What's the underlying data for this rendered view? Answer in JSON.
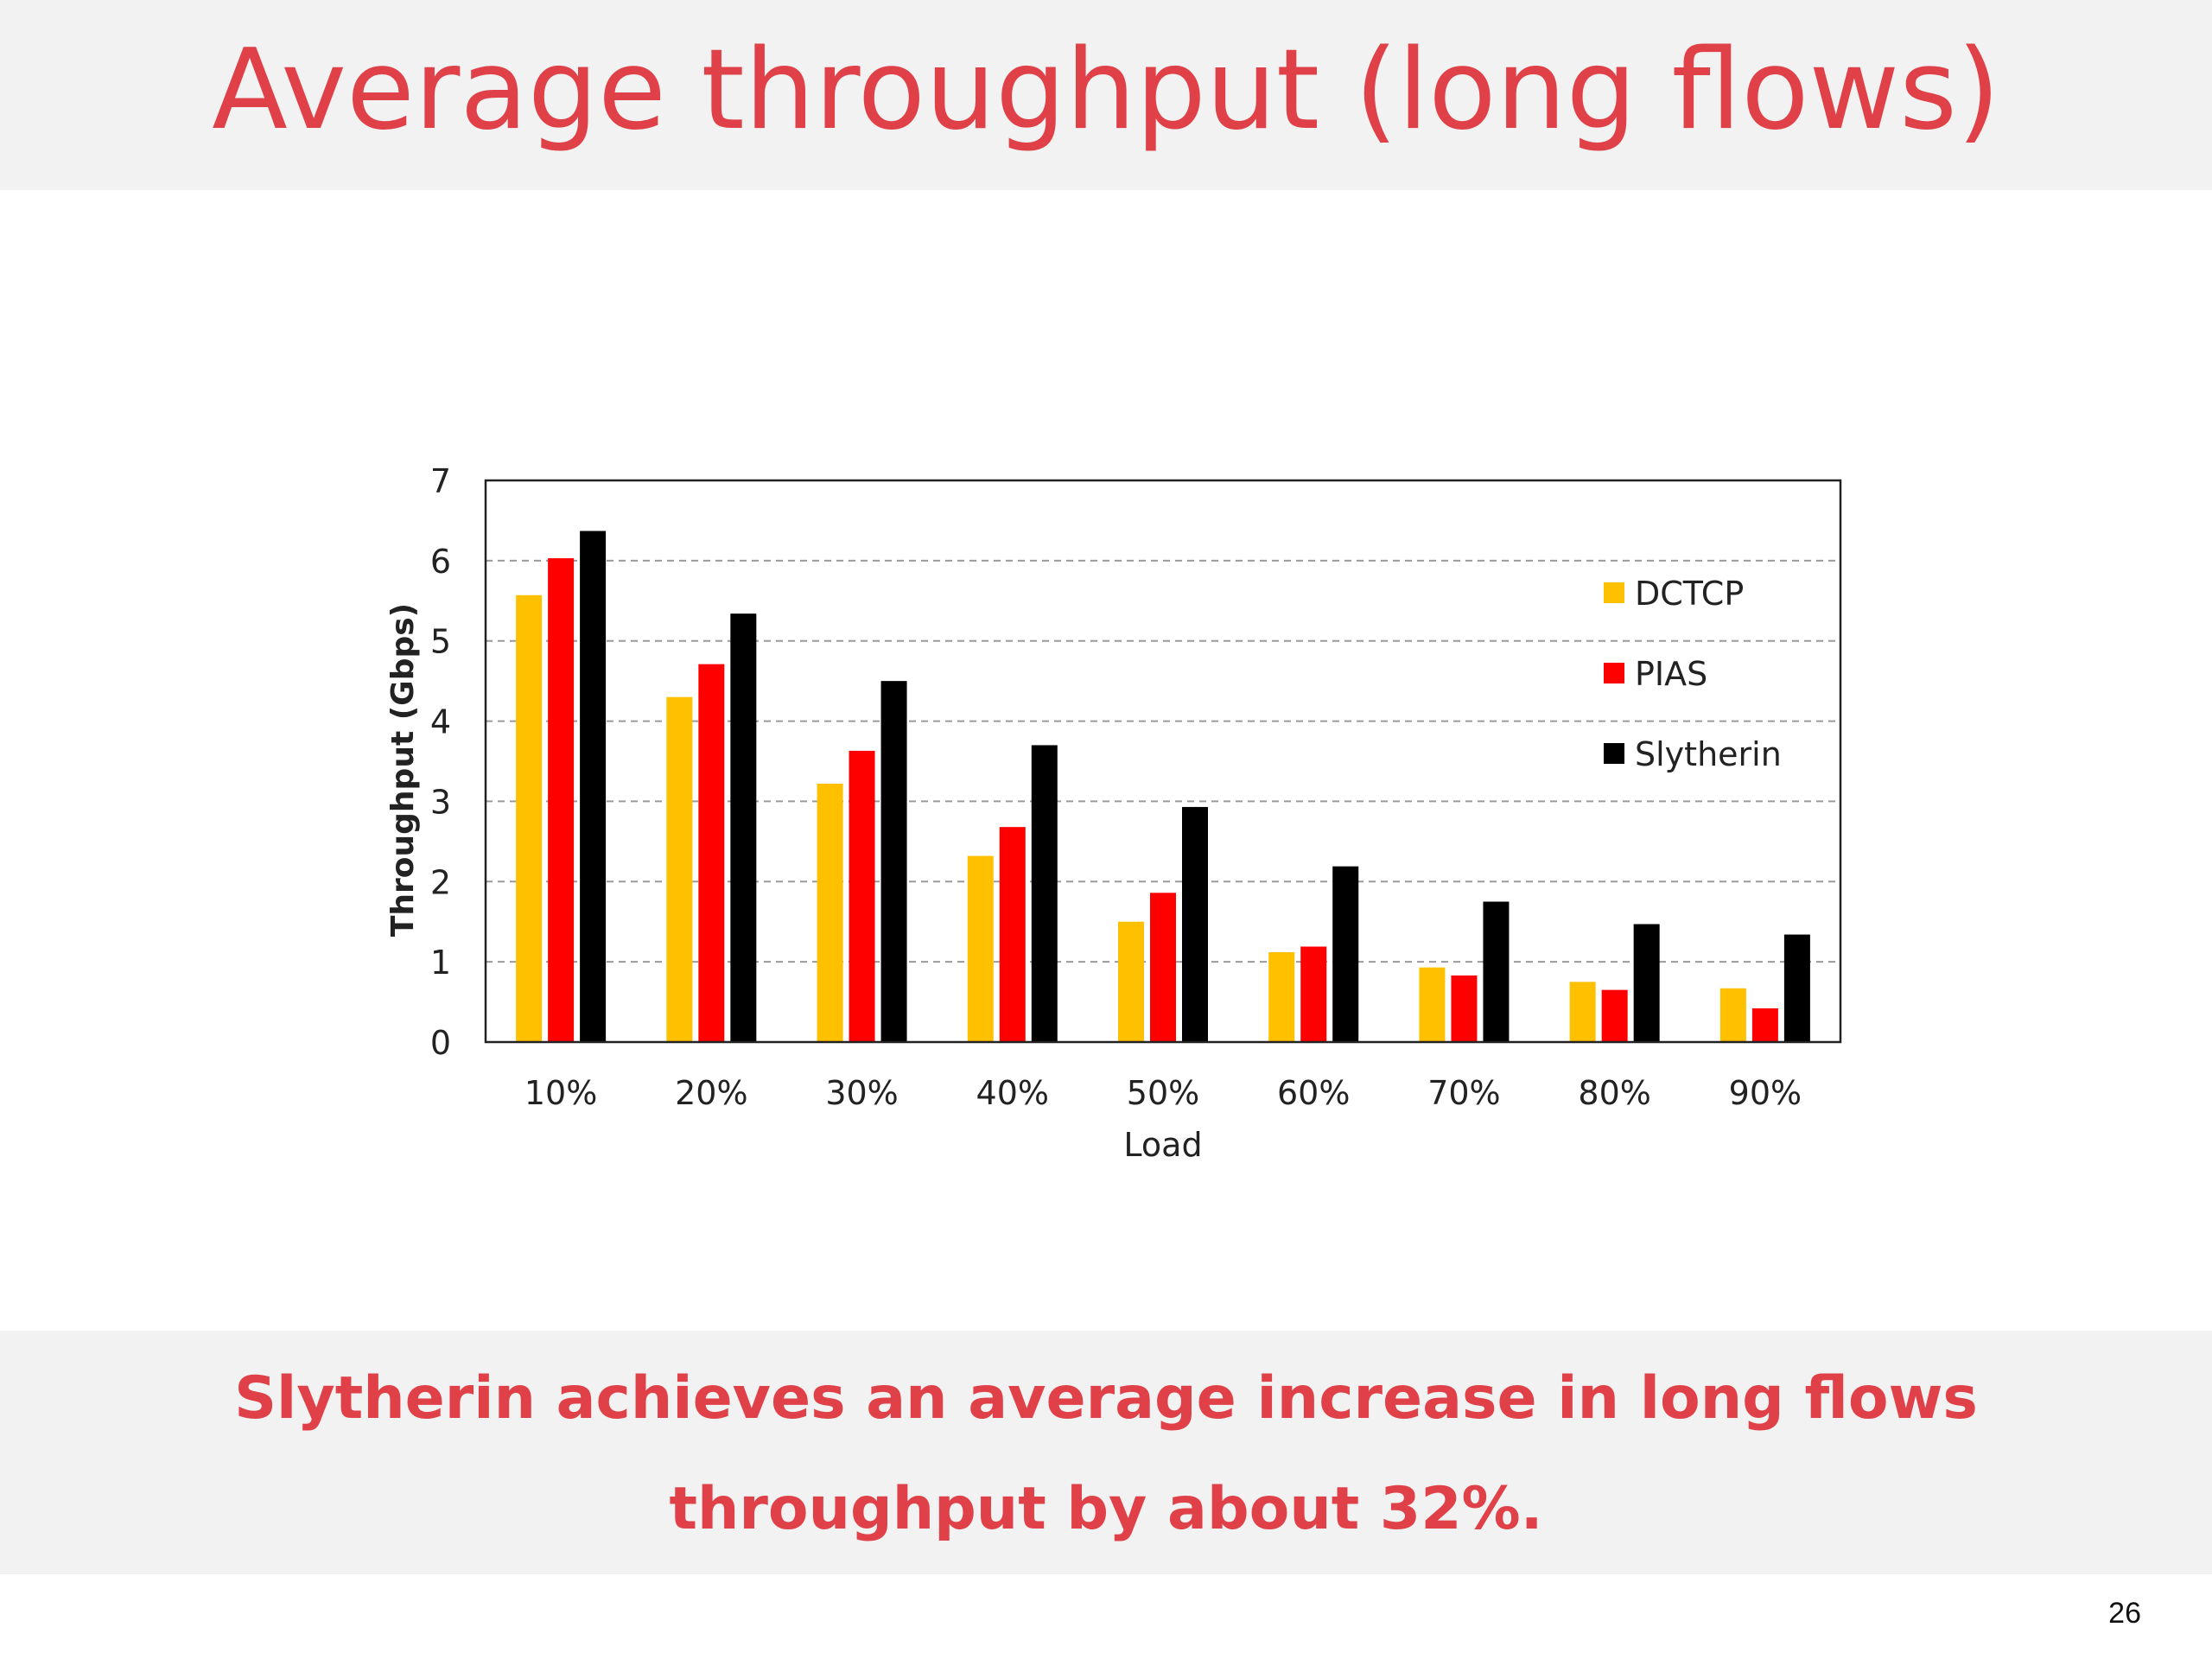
{
  "slide": {
    "title": "Average throughput (long flows)",
    "conclusion_line1": "Slytherin achieves an average increase in long flows",
    "conclusion_line2": "throughput by about 32%.",
    "page_number": "26"
  },
  "chart_data": {
    "type": "bar",
    "xlabel": "Load",
    "ylabel": "Throughput (Gbps)",
    "ylim": [
      0,
      7
    ],
    "yticks": [
      0,
      1,
      2,
      3,
      4,
      5,
      6,
      7
    ],
    "grid": "horizontal-dashed",
    "legend_position": "top-right",
    "categories": [
      "10%",
      "20%",
      "30%",
      "40%",
      "50%",
      "60%",
      "70%",
      "80%",
      "90%"
    ],
    "series": [
      {
        "name": "DCTCP",
        "color": "#ffc000",
        "values": [
          5.57,
          4.3,
          3.22,
          2.32,
          1.5,
          1.12,
          0.93,
          0.75,
          0.67
        ]
      },
      {
        "name": "PIAS",
        "color": "#ff0000",
        "values": [
          6.03,
          4.71,
          3.63,
          2.68,
          1.86,
          1.19,
          0.83,
          0.65,
          0.42
        ]
      },
      {
        "name": "Slytherin",
        "color": "#000000",
        "values": [
          6.37,
          5.34,
          4.5,
          3.7,
          2.93,
          2.19,
          1.75,
          1.47,
          1.34
        ]
      }
    ]
  }
}
